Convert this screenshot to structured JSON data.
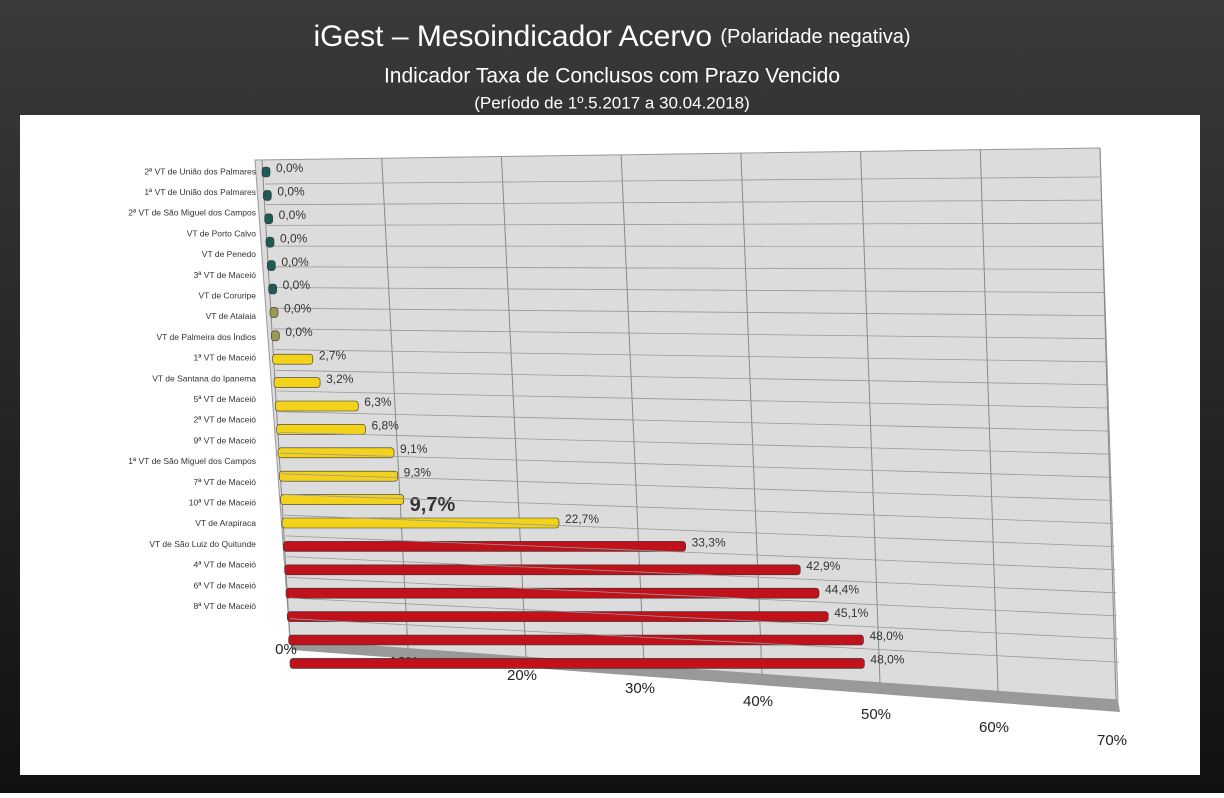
{
  "chart_data": {
    "type": "bar",
    "orientation": "horizontal",
    "title": "iGest – Mesoindicador Acervo",
    "title_note": "(Polaridade negativa)",
    "subtitle": "Indicador Taxa de Conclusos com Prazo Vencido",
    "period": "(Período de 1º.5.2017  a  30.04.2018)",
    "categories": [
      "2ª VT de União dos Palmares",
      "1ª VT de União dos Palmares",
      "2ª VT de São Miguel dos Campos",
      "VT de Porto Calvo",
      "VT de Penedo",
      "3ª VT de Maceió",
      "VT de Coruripe",
      "VT de Atalaia",
      "VT de Palmeira dos Índios",
      "1ª VT de Maceió",
      "VT de Santana do Ipanema",
      "5ª VT de Maceió",
      "2ª VT de Maceió",
      "9ª VT de Maceió",
      "1ª VT de São Miguel dos Campos",
      "7ª VT de Maceió",
      "10ª VT de Maceió",
      "VT de Arapiraca",
      "VT de São Luiz do Quitunde",
      "4ª VT de Maceió",
      "6ª VT de Maceió",
      "8ª VT de Maceió"
    ],
    "values": [
      0,
      0,
      0,
      0,
      0,
      0,
      0,
      0,
      2.7,
      3.2,
      6.3,
      6.8,
      9.1,
      9.3,
      9.7,
      22.7,
      33.3,
      42.9,
      44.4,
      45.1,
      48.0,
      48.0
    ],
    "value_labels": [
      "0,0%",
      "0,0%",
      "0,0%",
      "0,0%",
      "0,0%",
      "0,0%",
      "0,0%",
      "0,0%",
      "2,7%",
      "3,2%",
      "6,3%",
      "6,8%",
      "9,1%",
      "9,3%",
      "9,7%",
      "22,7%",
      "33,3%",
      "42,9%",
      "44,4%",
      "45,1%",
      "48,0%",
      "48,0%"
    ],
    "colors": [
      "#1e5b57",
      "#1e5b57",
      "#1e5b57",
      "#1e5b57",
      "#1e5b57",
      "#1e5b57",
      "#9a9a55",
      "#9a9a55",
      "#f2d21a",
      "#f2d21a",
      "#f2d21a",
      "#f2d21a",
      "#f2d21a",
      "#f2d21a",
      "#f2d21a",
      "#f2d21a",
      "#c0121a",
      "#c0121a",
      "#c0121a",
      "#c0121a",
      "#c0121a",
      "#c0121a"
    ],
    "xlim": [
      0,
      70
    ],
    "xticks": [
      {
        "value": 0,
        "label": "0%"
      },
      {
        "value": 10,
        "label": "10%"
      },
      {
        "value": 20,
        "label": "20%"
      },
      {
        "value": 30,
        "label": "30%"
      },
      {
        "value": 40,
        "label": "40%"
      },
      {
        "value": 50,
        "label": "50%"
      },
      {
        "value": 60,
        "label": "60%"
      },
      {
        "value": 70,
        "label": "70%"
      }
    ],
    "grid": true
  }
}
